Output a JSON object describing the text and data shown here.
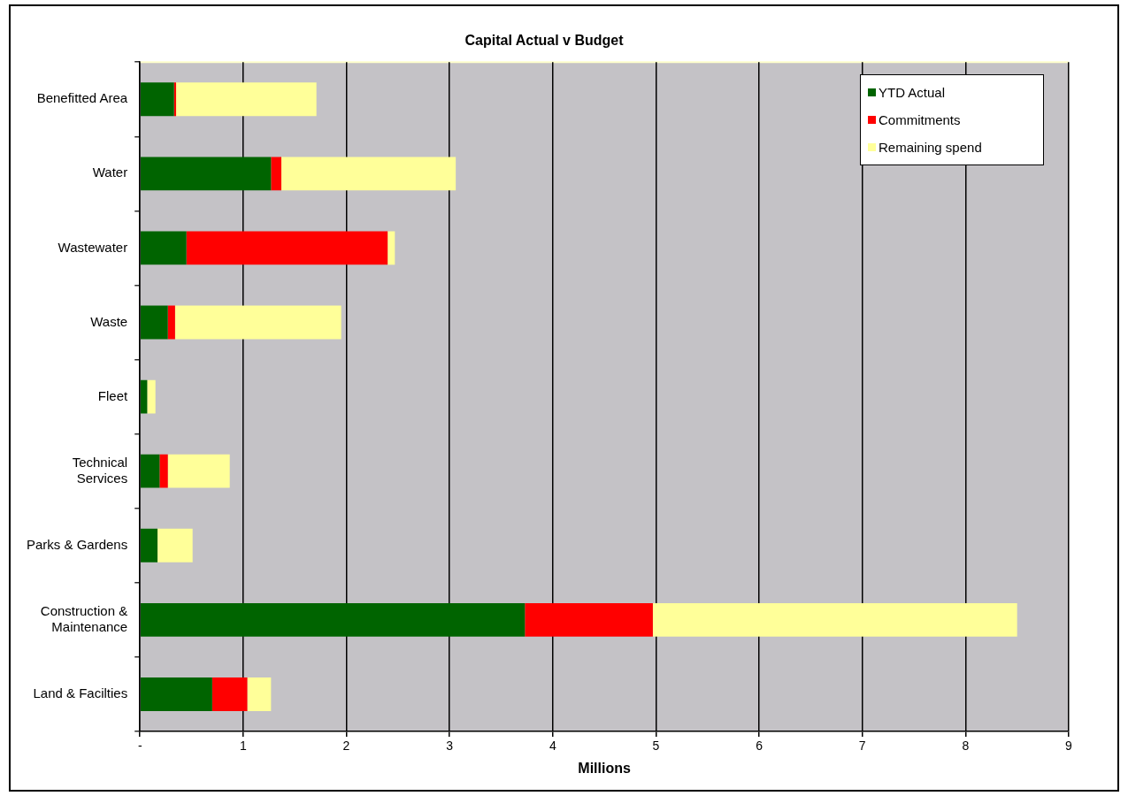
{
  "chart_data": {
    "type": "bar",
    "title": "Capital Actual v Budget",
    "xlabel": "Millions",
    "orientation": "horizontal",
    "stacked": true,
    "categories": [
      "Benefitted Area",
      "Water",
      "Wastewater",
      "Waste",
      "Fleet",
      "Technical Services",
      "Parks & Gardens",
      "Construction & Maintenance",
      "Land & Facilties"
    ],
    "series": [
      {
        "name": "YTD  Actual",
        "color": "#006400",
        "values": [
          0.33,
          1.27,
          0.45,
          0.27,
          0.07,
          0.19,
          0.17,
          3.73,
          0.7
        ]
      },
      {
        "name": "Commitments",
        "color": "#ff0000",
        "values": [
          0.02,
          0.1,
          1.95,
          0.07,
          0,
          0.08,
          0,
          1.24,
          0.34
        ]
      },
      {
        "name": "Remaining spend",
        "color": "#ffff99",
        "values": [
          1.36,
          1.69,
          0.07,
          1.61,
          0.08,
          0.6,
          0.34,
          3.53,
          0.23
        ]
      }
    ],
    "xlim": [
      0,
      9
    ],
    "xticks": [
      {
        "value": 0,
        "label": "-"
      },
      1,
      2,
      3,
      4,
      5,
      6,
      7,
      8,
      9
    ],
    "grid": "x",
    "legend": "top right"
  }
}
